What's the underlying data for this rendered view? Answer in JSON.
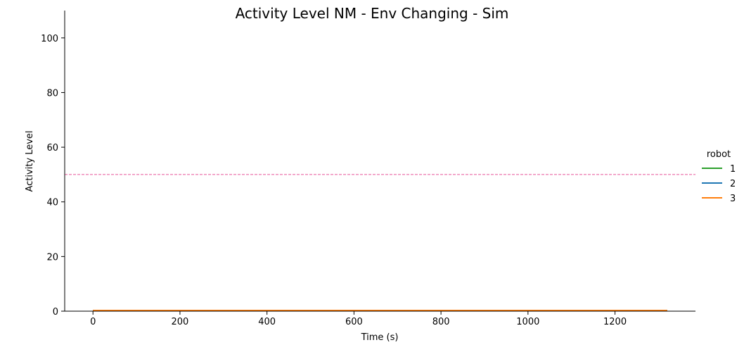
{
  "chart_data": {
    "type": "line",
    "title": "Activity Level NM - Env Changing - Sim",
    "xlabel": "Time (s)",
    "ylabel": "Activity Level",
    "xlim": [
      -65,
      1385
    ],
    "ylim": [
      0,
      110
    ],
    "xticks": [
      0,
      200,
      400,
      600,
      800,
      1000,
      1200
    ],
    "yticks": [
      0,
      20,
      40,
      60,
      80,
      100
    ],
    "grid": false,
    "legend": {
      "title": "robot",
      "placement": "right"
    },
    "reference_line": {
      "y": 50,
      "style": "dashed",
      "color": "#e8559a"
    },
    "series": [
      {
        "name": "1",
        "color": "#2ca02c",
        "x": [
          0,
          1320
        ],
        "y": [
          0,
          0
        ]
      },
      {
        "name": "2",
        "color": "#1f77b4",
        "x": [
          0,
          1320
        ],
        "y": [
          0,
          0
        ]
      },
      {
        "name": "3",
        "color": "#ff7f0e",
        "x": [
          0,
          1320
        ],
        "y": [
          0,
          0
        ]
      }
    ]
  }
}
